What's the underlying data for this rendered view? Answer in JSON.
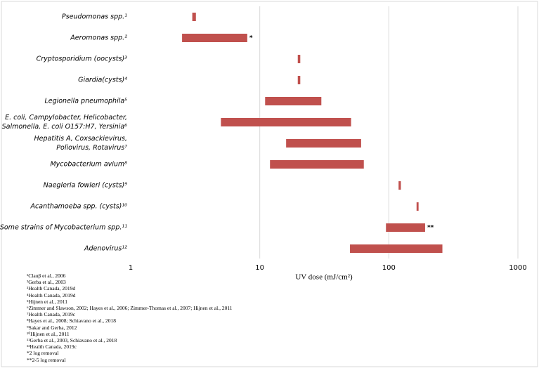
{
  "chart_data": {
    "type": "range_bar",
    "categories": [
      "Pseudomonas spp.¹",
      "Aeromonas spp.²",
      "Cryptosporidium (oocysts)³",
      "Giardia(cysts)⁴",
      "Legionella pneumophila⁵",
      "E. coli, Campylobacter, Helicobacter,\nSalmonella, E. coli O157:H7, Yersinia⁶",
      "Hepatitis A, Coxsackievirus,\nPoliovirus, Rotavirus⁷",
      "Mycobacterium avium⁸",
      "Naegleria fowleri (cysts)⁹",
      "Acanthamoeba spp. (cysts)¹⁰",
      "Some strains of Mycobacterium spp.¹¹",
      "Adenovirus¹²"
    ],
    "low": [
      3,
      2.5,
      19.7,
      19.7,
      11,
      5,
      16,
      12,
      119,
      164,
      95,
      50
    ],
    "high": [
      3.2,
      8,
      20.6,
      20.6,
      30,
      51,
      61,
      64,
      124,
      170,
      191,
      260
    ],
    "annotations": [
      null,
      "*",
      null,
      null,
      null,
      null,
      null,
      null,
      null,
      null,
      "**",
      null
    ],
    "color": "#c0504d",
    "xlabel": "UV dose (mJ/cm²)",
    "xlim": [
      1,
      1000
    ],
    "xticks": [
      1,
      10,
      100,
      1000
    ],
    "log_x": true,
    "grid": true,
    "footnotes": [
      "¹Clauβ et al., 2006",
      "²Gerba et al., 2003",
      "³Health Canada, 2019d",
      "⁴Health Canada, 2019d",
      "⁵Hijnen et al., 2011",
      "⁶Zimmer and Slawson, 2002; Hayes et al., 2006; Zimmer-Thomas et al., 2007; Hijnen et al., 2011",
      "⁷Health Canada, 2019c",
      "⁸Hayes et al., 2008; Schiavano et al., 2018",
      "⁹Sakar and Gerba, 2012",
      "¹⁰Hijnen et al., 2011",
      "¹¹Gerba et al., 2003, Schiavano et al., 2018",
      "¹²Health Canada, 2019c",
      "*2 log removal",
      "**2-5 log removal"
    ]
  }
}
